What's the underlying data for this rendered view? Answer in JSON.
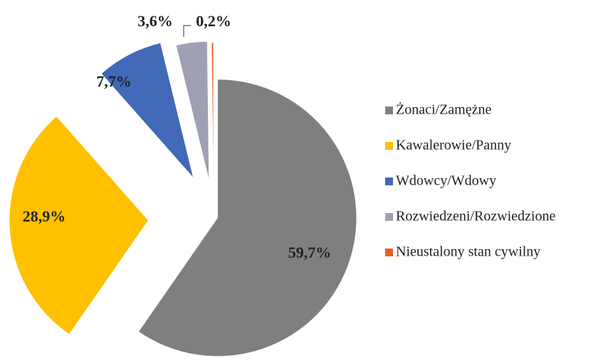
{
  "chart_data": {
    "type": "pie",
    "categories": [
      "Żonaci/Zamężne",
      "Kawalerowie/Panny",
      "Wdowcy/Wdowy",
      "Rozwiedzeni/Rozwiedzione",
      "Nieustalony stan cywilny"
    ],
    "values": [
      59.7,
      28.9,
      7.7,
      3.6,
      0.2
    ],
    "value_labels": [
      "59,7%",
      "28,9%",
      "7,7%",
      "3,6%",
      "0,2%"
    ],
    "colors": [
      "#7f7f7f",
      "#ffc000",
      "#4169b8",
      "#a0a0b4",
      "#e8601c"
    ],
    "legend": "right"
  }
}
